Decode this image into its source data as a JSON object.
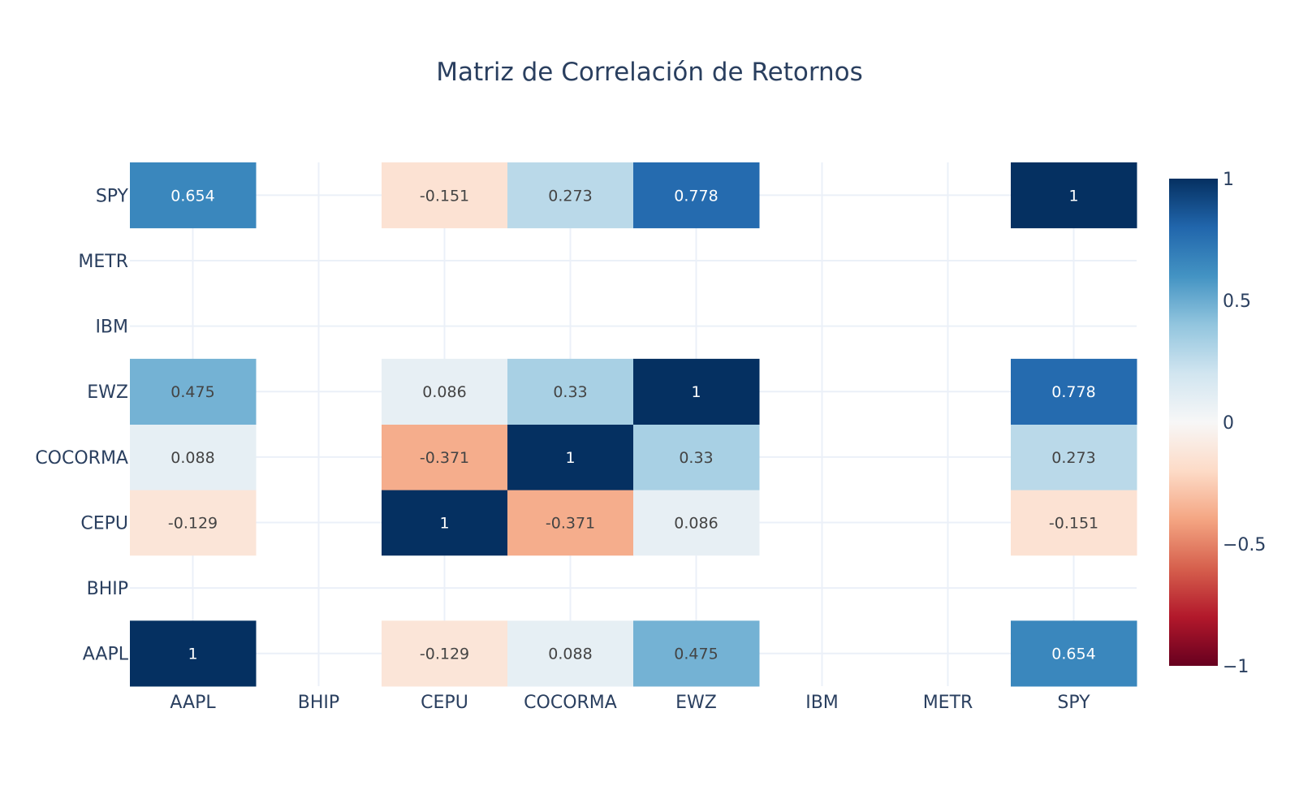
{
  "chart_data": {
    "type": "heatmap",
    "title": "Matriz de Correlación de Retornos",
    "x_categories": [
      "AAPL",
      "BHIP",
      "CEPU",
      "COCORMA",
      "EWZ",
      "IBM",
      "METR",
      "SPY"
    ],
    "y_categories": [
      "AAPL",
      "BHIP",
      "CEPU",
      "COCORMA",
      "EWZ",
      "IBM",
      "METR",
      "SPY"
    ],
    "z": [
      [
        1,
        null,
        -0.129,
        0.088,
        0.475,
        null,
        null,
        0.654
      ],
      [
        null,
        null,
        null,
        null,
        null,
        null,
        null,
        null
      ],
      [
        -0.129,
        null,
        1,
        -0.371,
        0.086,
        null,
        null,
        -0.151
      ],
      [
        0.088,
        null,
        -0.371,
        1,
        0.33,
        null,
        null,
        0.273
      ],
      [
        0.475,
        null,
        0.086,
        0.33,
        1,
        null,
        null,
        0.778
      ],
      [
        null,
        null,
        null,
        null,
        null,
        null,
        null,
        null
      ],
      [
        null,
        null,
        null,
        null,
        null,
        null,
        null,
        null
      ],
      [
        0.654,
        null,
        -0.151,
        0.273,
        0.778,
        null,
        null,
        1
      ]
    ],
    "zlim": [
      -1,
      1
    ],
    "colorscale": "RdBu",
    "colorbar": {
      "tick_values": [
        1,
        0.5,
        0,
        -0.5,
        -1
      ],
      "tick_labels": [
        "1",
        "0.5",
        "0",
        "−0.5",
        "−1"
      ],
      "placement": "right"
    },
    "show_text": true,
    "grid": true
  },
  "colors": {
    "grid": "#ebf0f8",
    "text_dark": "#2a3f5f",
    "background": "#ffffff"
  }
}
